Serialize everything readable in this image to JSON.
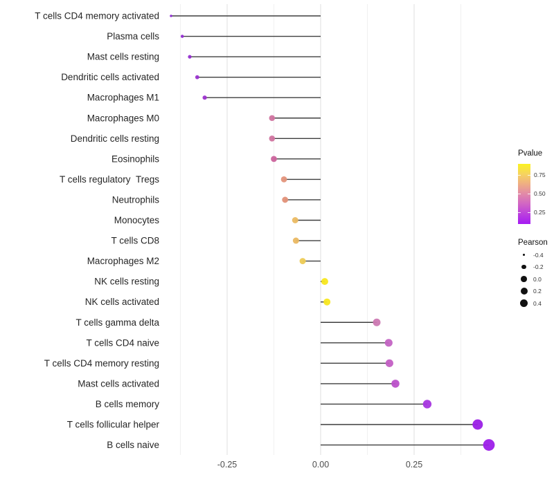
{
  "chart_data": {
    "type": "lollipop",
    "title": "",
    "xlabel": "",
    "ylabel": "",
    "xlim": [
      -0.44,
      0.48
    ],
    "grid": "on",
    "x_ticks": [
      {
        "label": "-0.25",
        "value": -0.25
      },
      {
        "label": "0.00",
        "value": 0.0
      },
      {
        "label": "0.25",
        "value": 0.25
      }
    ],
    "x_minor_ticks": [
      -0.375,
      -0.125,
      0.125,
      0.375
    ],
    "rows": [
      {
        "label": "T cells CD4 memory activated",
        "pearson": -0.4,
        "color": "#8e2bd1",
        "radius": 1.8
      },
      {
        "label": "Plasma cells",
        "pearson": -0.37,
        "color": "#922cd1",
        "radius": 2.3
      },
      {
        "label": "Mast cells resting",
        "pearson": -0.35,
        "color": "#952ed0",
        "radius": 2.6
      },
      {
        "label": "Dendritic cells activated",
        "pearson": -0.33,
        "color": "#9a31cf",
        "radius": 2.9
      },
      {
        "label": "Macrophages M1",
        "pearson": -0.31,
        "color": "#9d33ce",
        "radius": 3.1
      },
      {
        "label": "Macrophages M0",
        "pearson": -0.13,
        "color": "#d0739f",
        "radius": 4.3
      },
      {
        "label": "Dendritic cells resting",
        "pearson": -0.13,
        "color": "#d0739f",
        "radius": 4.3
      },
      {
        "label": "Eosinophils",
        "pearson": -0.125,
        "color": "#cb639c",
        "radius": 4.4
      },
      {
        "label": "T cells regulatory  Tregs",
        "pearson": -0.098,
        "color": "#e3947b",
        "radius": 4.4
      },
      {
        "label": "Neutrophils",
        "pearson": -0.095,
        "color": "#e29178",
        "radius": 4.4
      },
      {
        "label": "Monocytes",
        "pearson": -0.068,
        "color": "#ebbb63",
        "radius": 4.5
      },
      {
        "label": "T cells CD8",
        "pearson": -0.066,
        "color": "#eab862",
        "radius": 4.5
      },
      {
        "label": "Macrophages M2",
        "pearson": -0.048,
        "color": "#edcb55",
        "radius": 4.5
      },
      {
        "label": "NK cells resting",
        "pearson": 0.011,
        "color": "#f8e71f",
        "radius": 5.0
      },
      {
        "label": "NK cells activated",
        "pearson": 0.017,
        "color": "#f8e71f",
        "radius": 5.0
      },
      {
        "label": "T cells gamma delta",
        "pearson": 0.15,
        "color": "#cc79b2",
        "radius": 5.5
      },
      {
        "label": "T cells CD4 naive",
        "pearson": 0.182,
        "color": "#c364c3",
        "radius": 5.6
      },
      {
        "label": "T cells CD4 memory resting",
        "pearson": 0.184,
        "color": "#c35fc4",
        "radius": 5.6
      },
      {
        "label": "Mast cells activated",
        "pearson": 0.2,
        "color": "#bb50c9",
        "radius": 5.8
      },
      {
        "label": "B cells memory",
        "pearson": 0.285,
        "color": "#a736df",
        "radius": 6.2
      },
      {
        "label": "T cells follicular helper",
        "pearson": 0.42,
        "color": "#9b20e6",
        "radius": 7.5
      },
      {
        "label": "B cells naive",
        "pearson": 0.45,
        "color": "#9d1fe9",
        "radius": 8.4
      }
    ],
    "legend_pvalue": {
      "title": "Pvalue",
      "ticks": [
        "0.75",
        "0.50",
        "0.25"
      ],
      "gradient_top_to_bottom": [
        "#fbf220",
        "#f6d45f",
        "#efae83",
        "#e189a8",
        "#d165c4",
        "#bb3fdd",
        "#a51bf3"
      ]
    },
    "legend_pearson": {
      "title": "Pearson",
      "items": [
        {
          "label": "-0.4",
          "radius": 1.4
        },
        {
          "label": "-0.2",
          "radius": 3.2
        },
        {
          "label": "0.0",
          "radius": 4.3
        },
        {
          "label": "0.2",
          "radius": 5.0
        },
        {
          "label": "0.4",
          "radius": 5.7
        }
      ]
    },
    "colors": {
      "stem": "#3d3d3d",
      "grid_major": "#e4e4e4",
      "grid_minor": "#f0f0f0",
      "axis_text": "#4d4d4d",
      "label_text": "#262626"
    }
  }
}
